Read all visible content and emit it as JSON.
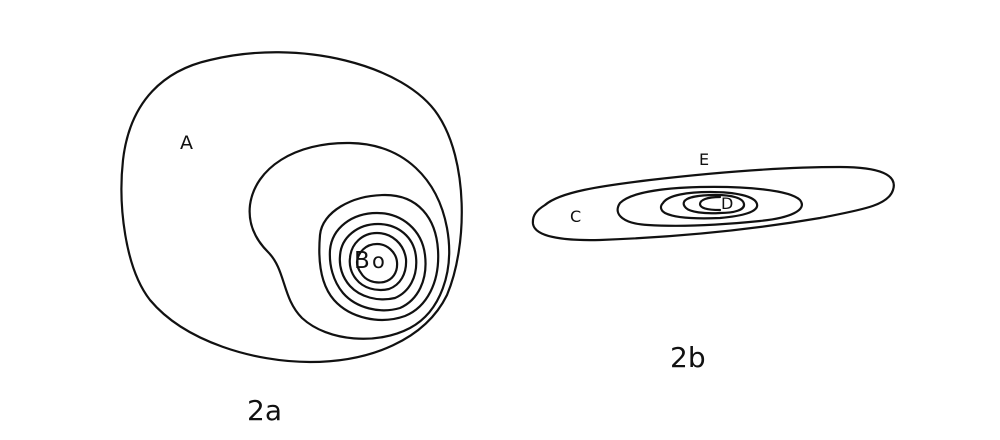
{
  "diagram_2a": {
    "caption": "2a",
    "labels": {
      "A": "A",
      "B": "B",
      "B_point": "o"
    }
  },
  "diagram_2b": {
    "caption": "2b",
    "labels": {
      "C": "C",
      "D": "D",
      "E": "E"
    }
  }
}
